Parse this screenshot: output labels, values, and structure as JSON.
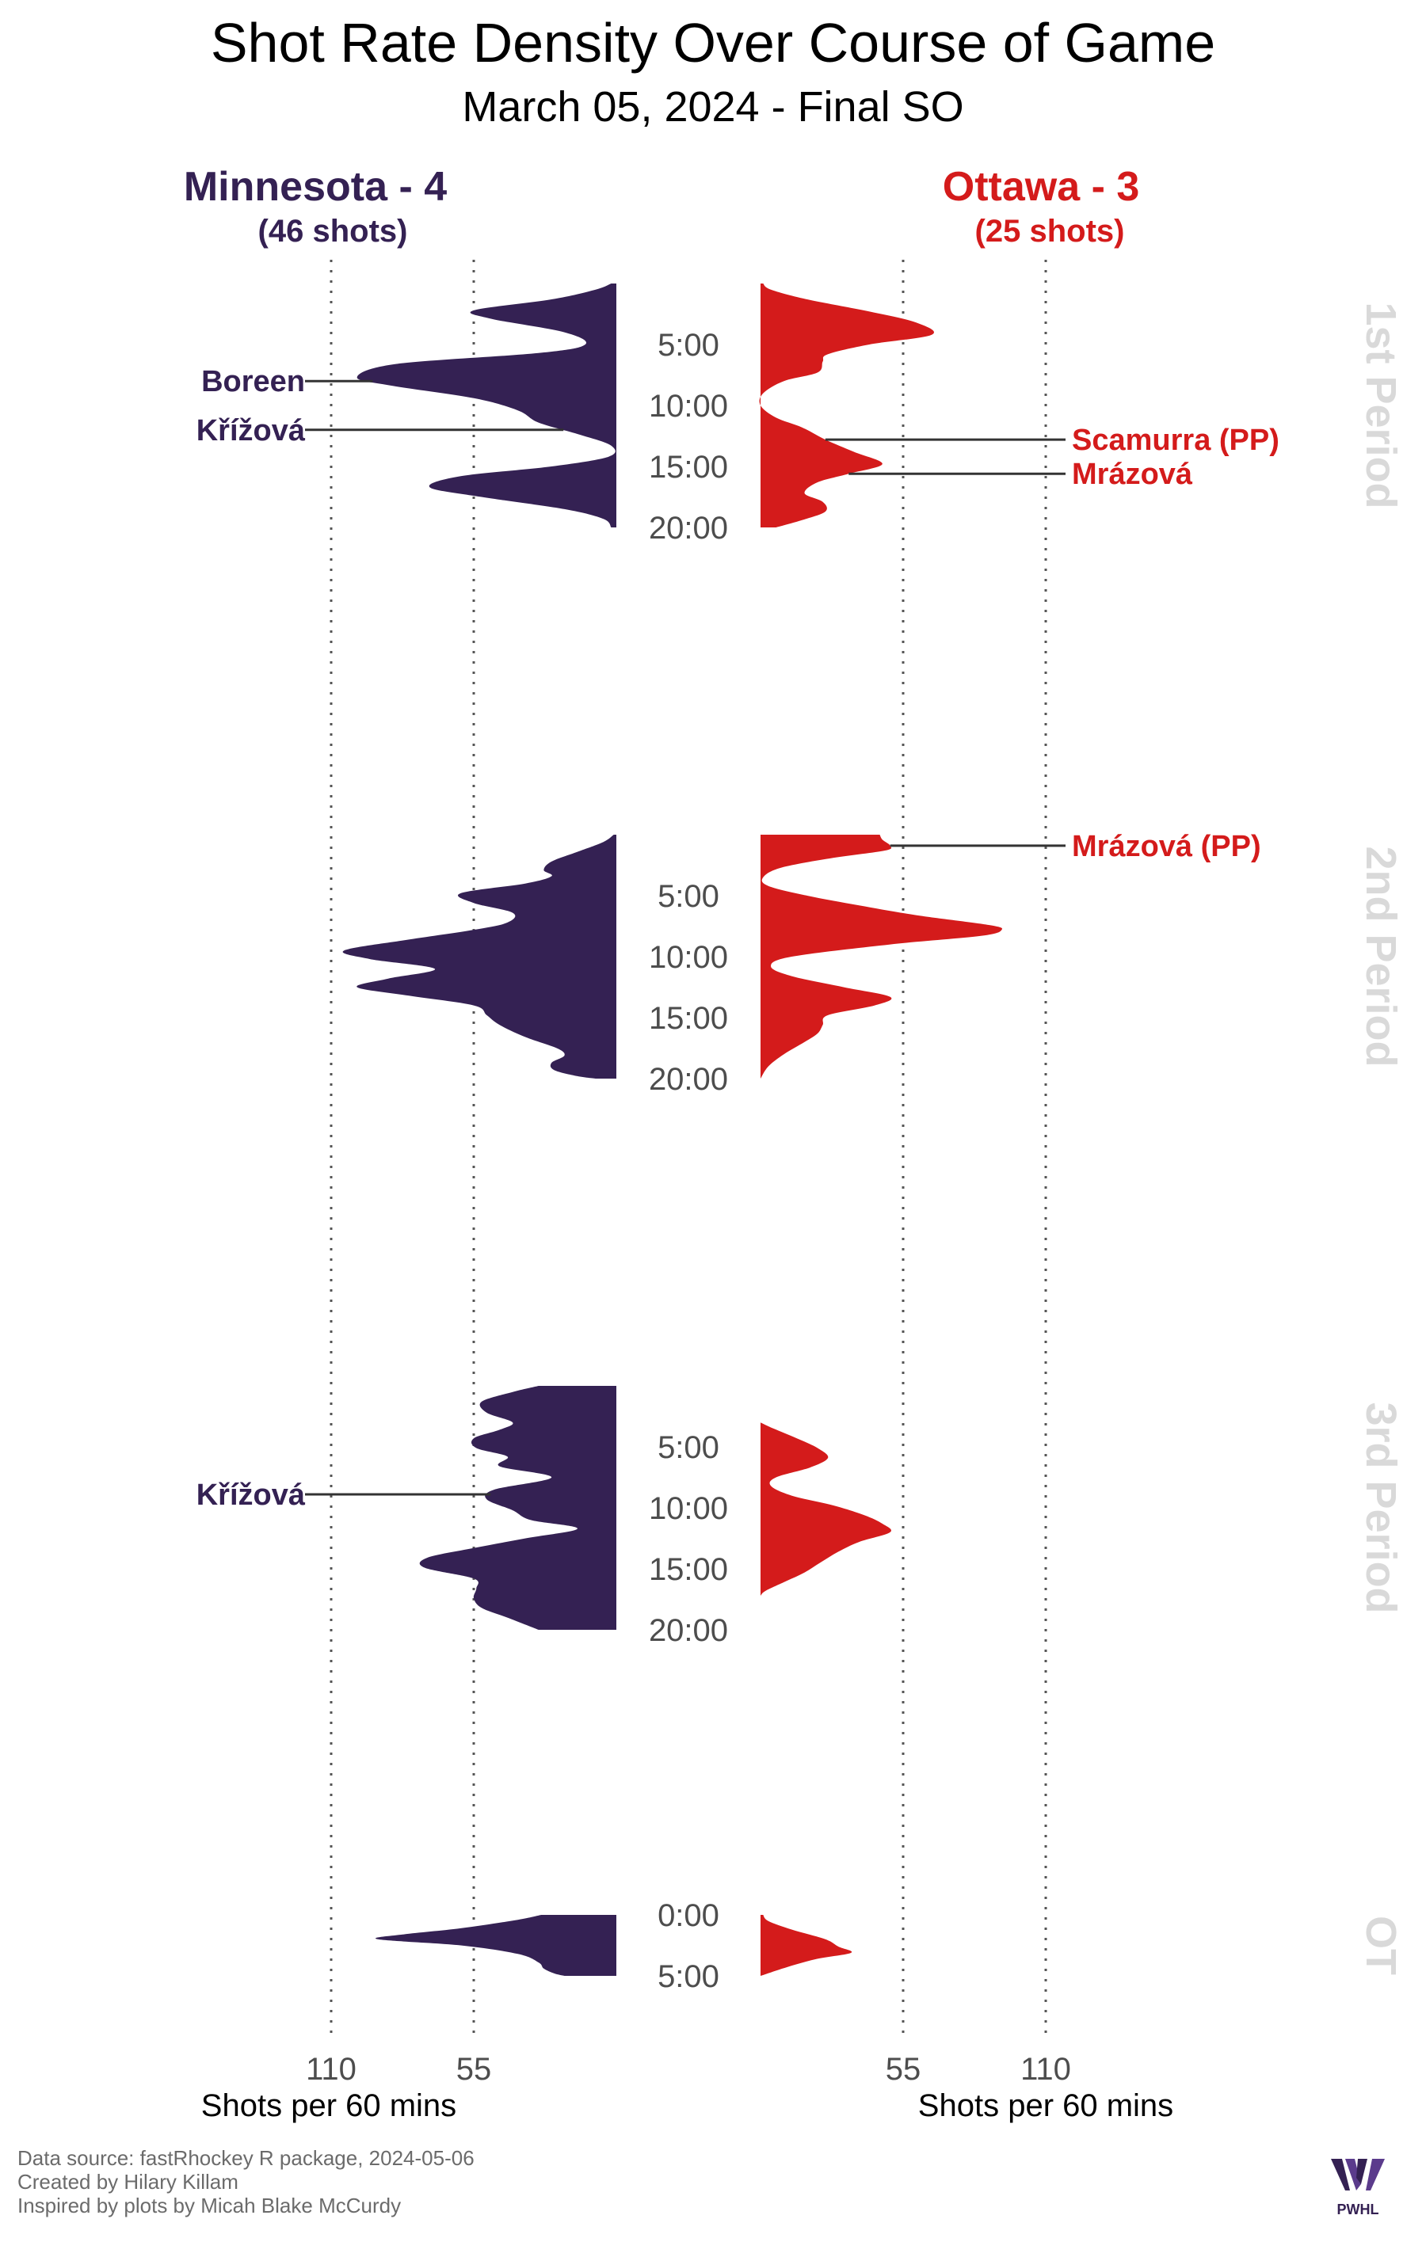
{
  "title": "Shot Rate Density Over Course of Game",
  "subtitle": "March 05, 2024 - Final SO",
  "colors": {
    "home": "#342153",
    "away": "#d41b1b",
    "period_label": "#d9d9d9",
    "credits": "#6b6b6b",
    "grid": "#555555"
  },
  "teams": {
    "left": {
      "name": "Minnesota - 4",
      "shots": "(46 shots)"
    },
    "right": {
      "name": "Ottawa - 3",
      "shots": "(25 shots)"
    }
  },
  "credits": [
    "Data source: fastRhockey R package, 2024-05-06",
    "Created by Hilary Killam",
    "Inspired by plots by Micah Blake McCurdy"
  ],
  "logo": {
    "icon": "pwhl-logo",
    "text": "PWHL"
  },
  "chart_data": {
    "type": "area",
    "x_axis": {
      "label": "Shots per 60 mins",
      "ticks": [
        110,
        55
      ],
      "range": [
        0,
        110
      ]
    },
    "periods": [
      {
        "label": "1st Period",
        "length": 20,
        "time_labels": [
          "5:00",
          "10:00",
          "15:00",
          "20:00"
        ],
        "series": [
          {
            "team": "Minnesota",
            "points": [
              [
                0,
                2
              ],
              [
                0.5,
                8
              ],
              [
                1.3,
                25
              ],
              [
                2.2,
                55
              ],
              [
                2.9,
                48
              ],
              [
                4.0,
                20
              ],
              [
                5.0,
                12
              ],
              [
                5.7,
                30
              ],
              [
                6.6,
                85
              ],
              [
                7.7,
                100
              ],
              [
                8.4,
                86
              ],
              [
                9.4,
                55
              ],
              [
                10.4,
                38
              ],
              [
                11.4,
                30
              ],
              [
                12.4,
                14
              ],
              [
                13.3,
                2
              ],
              [
                14.2,
                3
              ],
              [
                15.0,
                25
              ],
              [
                15.8,
                60
              ],
              [
                16.7,
                72
              ],
              [
                17.5,
                52
              ],
              [
                18.5,
                20
              ],
              [
                19.3,
                5
              ],
              [
                20,
                2
              ]
            ]
          },
          {
            "team": "Ottawa",
            "points": [
              [
                0,
                1
              ],
              [
                0.5,
                4
              ],
              [
                1.3,
                18
              ],
              [
                2.3,
                42
              ],
              [
                3.2,
                60
              ],
              [
                4.2,
                66
              ],
              [
                5.0,
                42
              ],
              [
                5.8,
                26
              ],
              [
                6.4,
                24
              ],
              [
                7.3,
                22
              ],
              [
                8.0,
                9
              ],
              [
                9.0,
                1
              ],
              [
                10.0,
                0
              ],
              [
                11.0,
                6
              ],
              [
                11.8,
                16
              ],
              [
                12.8,
                25
              ],
              [
                13.8,
                36
              ],
              [
                14.8,
                47
              ],
              [
                15.6,
                34
              ],
              [
                16.3,
                22
              ],
              [
                17.2,
                17
              ],
              [
                17.9,
                24
              ],
              [
                18.7,
                25
              ],
              [
                19.4,
                16
              ],
              [
                20,
                6
              ]
            ]
          }
        ],
        "goals": [
          {
            "team": "Minnesota",
            "player": "Boreen",
            "time": 8.0
          },
          {
            "team": "Minnesota",
            "player": "Křížová",
            "time": 12.0
          },
          {
            "team": "Ottawa",
            "player": "Scamurra (PP)",
            "time": 12.8
          },
          {
            "team": "Ottawa",
            "player": "Mrázová",
            "time": 15.6
          }
        ]
      },
      {
        "label": "2nd Period",
        "length": 20,
        "time_labels": [
          "5:00",
          "10:00",
          "15:00",
          "20:00"
        ],
        "series": [
          {
            "team": "Minnesota",
            "points": [
              [
                0,
                1
              ],
              [
                0.6,
                5
              ],
              [
                1.4,
                15
              ],
              [
                2.2,
                25
              ],
              [
                2.9,
                28
              ],
              [
                3.4,
                25
              ],
              [
                4.0,
                35
              ],
              [
                4.8,
                60
              ],
              [
                5.6,
                55
              ],
              [
                6.4,
                40
              ],
              [
                7.2,
                42
              ],
              [
                7.8,
                55
              ],
              [
                8.6,
                80
              ],
              [
                9.5,
                105
              ],
              [
                10.2,
                95
              ],
              [
                11.0,
                70
              ],
              [
                11.8,
                88
              ],
              [
                12.5,
                100
              ],
              [
                13.2,
                80
              ],
              [
                14.0,
                55
              ],
              [
                14.8,
                50
              ],
              [
                15.6,
                45
              ],
              [
                16.6,
                35
              ],
              [
                17.5,
                23
              ],
              [
                18.1,
                20
              ],
              [
                18.7,
                25
              ],
              [
                19.3,
                24
              ],
              [
                19.8,
                15
              ],
              [
                20,
                8
              ]
            ]
          },
          {
            "team": "Ottawa",
            "points": [
              [
                0,
                46
              ],
              [
                0.4,
                47
              ],
              [
                0.9,
                50
              ],
              [
                1.3,
                48
              ],
              [
                1.9,
                28
              ],
              [
                2.7,
                8
              ],
              [
                3.5,
                1
              ],
              [
                4.2,
                3
              ],
              [
                5.0,
                18
              ],
              [
                5.8,
                38
              ],
              [
                6.6,
                60
              ],
              [
                7.4,
                88
              ],
              [
                7.8,
                93
              ],
              [
                8.3,
                85
              ],
              [
                9.0,
                50
              ],
              [
                10.0,
                12
              ],
              [
                10.8,
                4
              ],
              [
                11.6,
                12
              ],
              [
                12.5,
                32
              ],
              [
                13.3,
                50
              ],
              [
                14.0,
                44
              ],
              [
                14.8,
                26
              ],
              [
                15.6,
                24
              ],
              [
                16.3,
                22
              ],
              [
                17.0,
                17
              ],
              [
                18.0,
                9
              ],
              [
                19.0,
                3
              ],
              [
                20,
                0
              ]
            ]
          }
        ],
        "goals": [
          {
            "team": "Ottawa",
            "player": "Mrázová (PP)",
            "time": 0.9
          }
        ]
      },
      {
        "label": "3rd Period",
        "length": 20,
        "time_labels": [
          "5:00",
          "10:00",
          "15:00",
          "20:00"
        ],
        "series": [
          {
            "team": "Minnesota",
            "points": [
              [
                0,
                30
              ],
              [
                0.5,
                40
              ],
              [
                1.3,
                52
              ],
              [
                2.2,
                50
              ],
              [
                3.0,
                40
              ],
              [
                3.6,
                45
              ],
              [
                4.3,
                55
              ],
              [
                5.1,
                54
              ],
              [
                5.8,
                42
              ],
              [
                6.6,
                45
              ],
              [
                7.5,
                25
              ],
              [
                8.5,
                47
              ],
              [
                9.3,
                50
              ],
              [
                10.2,
                40
              ],
              [
                11.0,
                33
              ],
              [
                11.7,
                15
              ],
              [
                12.5,
                35
              ],
              [
                13.3,
                55
              ],
              [
                14.1,
                73
              ],
              [
                14.9,
                74
              ],
              [
                15.8,
                55
              ],
              [
                16.6,
                54
              ],
              [
                17.4,
                55
              ],
              [
                18.2,
                52
              ],
              [
                19.0,
                42
              ],
              [
                20,
                30
              ]
            ]
          },
          {
            "team": "Ottawa",
            "points": [
              [
                3.0,
                0
              ],
              [
                3.5,
                5
              ],
              [
                4.3,
                14
              ],
              [
                5.1,
                22
              ],
              [
                5.9,
                26
              ],
              [
                6.7,
                19
              ],
              [
                7.5,
                6
              ],
              [
                8.2,
                4
              ],
              [
                9.0,
                12
              ],
              [
                9.8,
                28
              ],
              [
                10.6,
                40
              ],
              [
                11.3,
                47
              ],
              [
                12.0,
                50
              ],
              [
                12.8,
                38
              ],
              [
                13.6,
                30
              ],
              [
                14.5,
                23
              ],
              [
                15.3,
                17
              ],
              [
                16.0,
                10
              ],
              [
                16.8,
                2
              ],
              [
                17.2,
                0
              ]
            ]
          }
        ],
        "goals": [
          {
            "team": "Minnesota",
            "player": "Křížová",
            "time": 8.9
          }
        ]
      },
      {
        "label": "OT",
        "length": 5,
        "time_labels": [
          "0:00",
          "5:00"
        ],
        "series": [
          {
            "team": "Minnesota",
            "points": [
              [
                0,
                29
              ],
              [
                0.4,
                38
              ],
              [
                1.1,
                60
              ],
              [
                1.6,
                82
              ],
              [
                2.0,
                92
              ],
              [
                2.5,
                60
              ],
              [
                3.2,
                38
              ],
              [
                3.9,
                30
              ],
              [
                4.4,
                28
              ],
              [
                4.8,
                24
              ],
              [
                5,
                20
              ]
            ]
          },
          {
            "team": "Ottawa",
            "points": [
              [
                0,
                1
              ],
              [
                0.5,
                3
              ],
              [
                1.2,
                12
              ],
              [
                2.0,
                25
              ],
              [
                2.6,
                30
              ],
              [
                3.1,
                35
              ],
              [
                3.6,
                22
              ],
              [
                4.3,
                10
              ],
              [
                5,
                0
              ]
            ]
          }
        ],
        "goals": []
      }
    ]
  }
}
